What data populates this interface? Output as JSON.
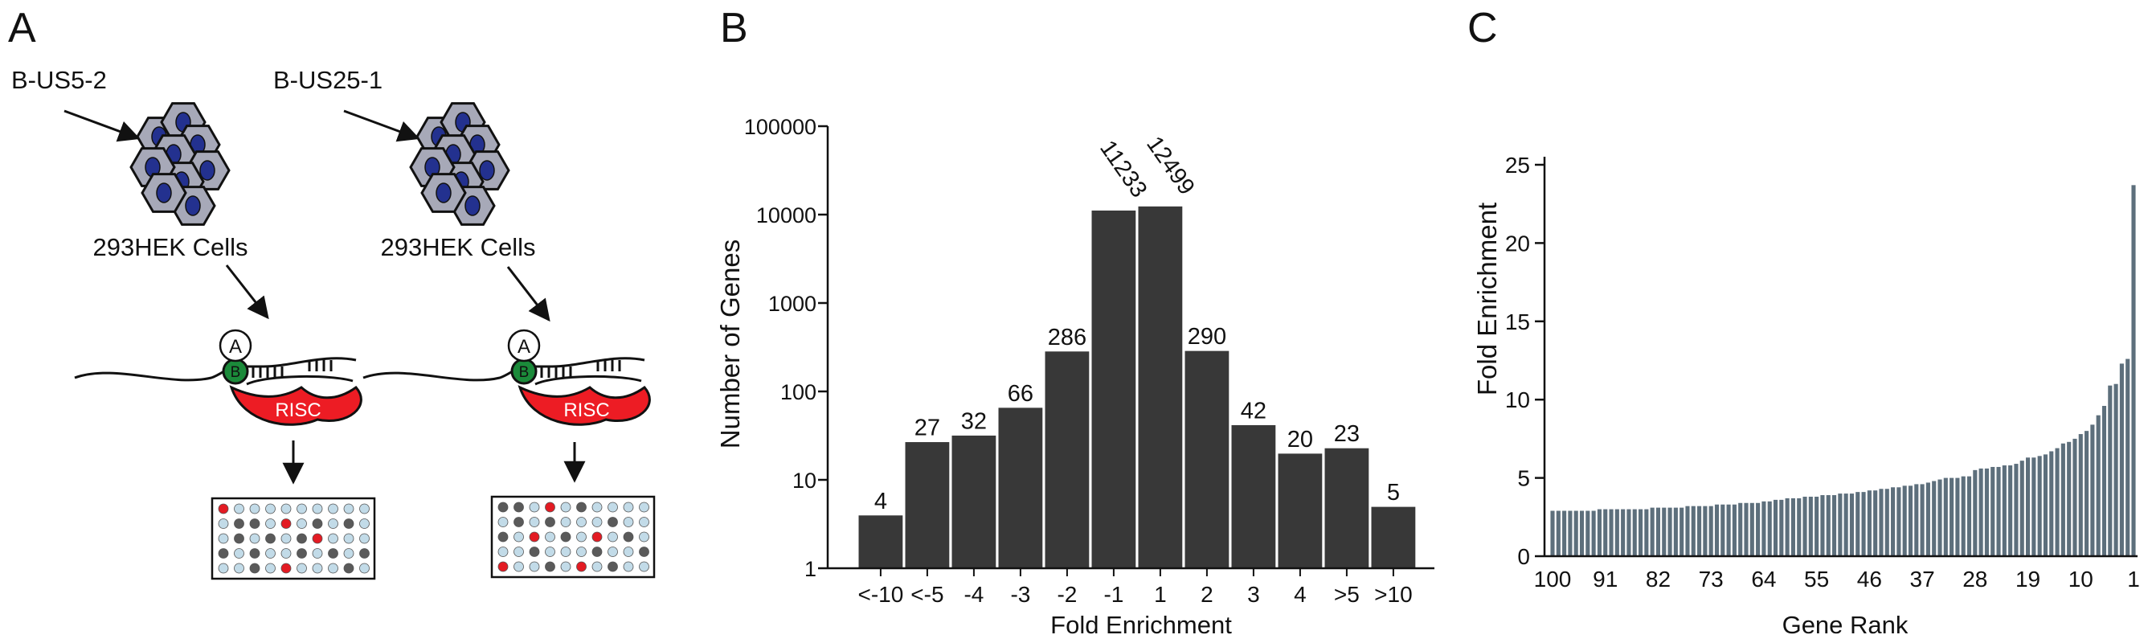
{
  "panels": {
    "a": {
      "letter": "A",
      "virus_left": "B-US5-2",
      "virus_right": "B-US25-1",
      "cells_label": "293HEK Cells",
      "ago_label": "A",
      "bind_label": "B",
      "risc_label": "RISC",
      "grid_left": {
        "rows": 5,
        "cols": 10,
        "red": [
          [
            0,
            0
          ],
          [
            1,
            4
          ],
          [
            2,
            6
          ],
          [
            4,
            4
          ]
        ],
        "gray": [
          [
            1,
            1
          ],
          [
            1,
            2
          ],
          [
            1,
            6
          ],
          [
            1,
            8
          ],
          [
            2,
            1
          ],
          [
            2,
            3
          ],
          [
            2,
            5
          ],
          [
            3,
            0
          ],
          [
            3,
            2
          ],
          [
            3,
            5
          ],
          [
            3,
            7
          ],
          [
            3,
            9
          ],
          [
            4,
            2
          ],
          [
            4,
            8
          ]
        ]
      },
      "grid_right": {
        "rows": 5,
        "cols": 10,
        "red": [
          [
            0,
            3
          ],
          [
            2,
            2
          ],
          [
            2,
            6
          ],
          [
            4,
            0
          ],
          [
            4,
            5
          ]
        ],
        "gray": [
          [
            0,
            0
          ],
          [
            0,
            1
          ],
          [
            0,
            5
          ],
          [
            1,
            1
          ],
          [
            1,
            3
          ],
          [
            1,
            7
          ],
          [
            2,
            0
          ],
          [
            2,
            4
          ],
          [
            2,
            8
          ],
          [
            3,
            2
          ],
          [
            3,
            6
          ],
          [
            3,
            9
          ],
          [
            4,
            3
          ],
          [
            4,
            7
          ]
        ]
      }
    },
    "b": {
      "letter": "B"
    },
    "c": {
      "letter": "C"
    }
  },
  "chart_data": [
    {
      "type": "bar",
      "categories": [
        "<-10",
        "<-5",
        "-4",
        "-3",
        "-2",
        "-1",
        "1",
        "2",
        "3",
        "4",
        ">5",
        ">10"
      ],
      "values": [
        4,
        27,
        32,
        66,
        286,
        11233,
        12499,
        290,
        42,
        20,
        23,
        5
      ],
      "value_labels": [
        "4",
        "27",
        "32",
        "66",
        "286",
        "11233",
        "12499",
        "290",
        "42",
        "20",
        "23",
        "5"
      ],
      "xlabel": "Fold Enrichment",
      "ylabel": "Number of Genes",
      "yscale": "log",
      "ylim": [
        1,
        100000
      ],
      "yticks": [
        1,
        10,
        100,
        1000,
        10000,
        100000
      ],
      "ytick_labels": [
        "1",
        "10",
        "100",
        "1000",
        "10000",
        "100000"
      ],
      "bar_color": "#383838"
    },
    {
      "type": "bar",
      "xlabel": "Gene Rank",
      "ylabel": "Fold Enrichment",
      "ylim": [
        0,
        25
      ],
      "yticks": [
        0,
        5,
        10,
        15,
        20,
        25
      ],
      "ytick_labels": [
        "0",
        "5",
        "10",
        "15",
        "20",
        "25"
      ],
      "xtick_labels": [
        "100",
        "91",
        "82",
        "73",
        "64",
        "55",
        "46",
        "37",
        "28",
        "19",
        "10",
        "1"
      ],
      "xtick_ranks": [
        100,
        91,
        82,
        73,
        64,
        55,
        46,
        37,
        28,
        19,
        10,
        1
      ],
      "bar_color": "#5d6f7c",
      "rank_order": "descending",
      "values_by_rank": [
        23.7,
        12.6,
        12.3,
        11.0,
        10.9,
        9.6,
        9.0,
        8.4,
        8.0,
        7.8,
        7.5,
        7.3,
        7.2,
        6.9,
        6.7,
        6.5,
        6.4,
        6.3,
        6.3,
        6.1,
        5.9,
        5.8,
        5.8,
        5.7,
        5.7,
        5.6,
        5.6,
        5.5,
        5.1,
        5.1,
        5.0,
        5.0,
        5.0,
        4.9,
        4.8,
        4.7,
        4.6,
        4.6,
        4.5,
        4.5,
        4.4,
        4.4,
        4.3,
        4.3,
        4.2,
        4.2,
        4.1,
        4.1,
        4.0,
        4.0,
        4.0,
        3.9,
        3.9,
        3.9,
        3.8,
        3.8,
        3.8,
        3.7,
        3.7,
        3.7,
        3.6,
        3.6,
        3.5,
        3.5,
        3.4,
        3.4,
        3.4,
        3.4,
        3.3,
        3.3,
        3.3,
        3.3,
        3.2,
        3.2,
        3.2,
        3.2,
        3.2,
        3.1,
        3.1,
        3.1,
        3.1,
        3.1,
        3.1,
        3.0,
        3.0,
        3.0,
        3.0,
        3.0,
        3.0,
        3.0,
        3.0,
        3.0,
        2.9,
        2.9,
        2.9,
        2.9,
        2.9,
        2.9,
        2.9,
        2.9
      ]
    }
  ]
}
